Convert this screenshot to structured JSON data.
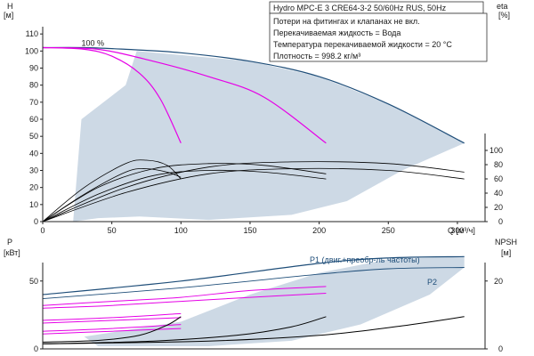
{
  "info": {
    "pump": "Hydro MPC-E 3 CRE64-3-2 50/60Hz RUS, 50Hz",
    "lines": [
      "Потери на фитингах и клапанах не вкл.",
      "Перекачиваемая жидкость = Вода",
      "Температура перекачиваемой жидкости = 20 °C",
      "Плотность = 998.2 кг/м³"
    ]
  },
  "chart_data": [
    {
      "type": "line",
      "panel": "top",
      "y_title": [
        "H",
        "[м]"
      ],
      "y2_title": [
        "eta",
        "[%]"
      ],
      "x_title": "Q [м³/ч]",
      "xlim": [
        0,
        320
      ],
      "ylim": [
        0,
        120
      ],
      "y2lim": [
        0,
        120
      ],
      "x_ticks": [
        0,
        50,
        100,
        150,
        200,
        250,
        300
      ],
      "y_ticks": [
        0,
        10,
        20,
        30,
        40,
        50,
        60,
        70,
        80,
        90,
        100,
        110
      ],
      "y2_ticks": [
        0,
        20,
        40,
        60,
        80,
        100
      ],
      "grid": false,
      "annotations": [
        {
          "text": "100 %",
          "x": 28,
          "y": 103
        }
      ],
      "colors": {
        "envelope": "#1f4e79",
        "reduced": "#e600e6",
        "eff": "#000000",
        "area": "#cdd9e5"
      },
      "series": [
        {
          "role": "envelope",
          "points": [
            [
              0,
              102
            ],
            [
              30,
              102
            ],
            [
              60,
              101
            ],
            [
              100,
              99
            ],
            [
              150,
              94
            ],
            [
              200,
              85
            ],
            [
              250,
              69
            ],
            [
              305,
              46
            ]
          ]
        },
        {
          "role": "reduced",
          "points": [
            [
              0,
              102
            ],
            [
              30,
              101
            ],
            [
              50,
              97
            ],
            [
              70,
              87
            ],
            [
              85,
              72
            ],
            [
              100,
              46
            ]
          ]
        },
        {
          "role": "reduced",
          "points": [
            [
              0,
              102
            ],
            [
              40,
              101
            ],
            [
              80,
              94
            ],
            [
              120,
              85
            ],
            [
              160,
              73
            ],
            [
              205,
              46
            ]
          ]
        },
        {
          "role": "eff",
          "points": [
            [
              0,
              0
            ],
            [
              30,
              20
            ],
            [
              60,
              34
            ],
            [
              75,
              36
            ],
            [
              90,
              33
            ],
            [
              100,
              25
            ]
          ]
        },
        {
          "role": "eff",
          "points": [
            [
              0,
              0
            ],
            [
              30,
              16
            ],
            [
              60,
              29
            ],
            [
              75,
              31
            ],
            [
              90,
              29
            ],
            [
              100,
              26
            ]
          ]
        },
        {
          "role": "eff",
          "points": [
            [
              0,
              0
            ],
            [
              40,
              20
            ],
            [
              80,
              31
            ],
            [
              120,
              34
            ],
            [
              160,
              33
            ],
            [
              205,
              28
            ]
          ]
        },
        {
          "role": "eff",
          "points": [
            [
              0,
              0
            ],
            [
              40,
              16
            ],
            [
              80,
              27
            ],
            [
              120,
              30
            ],
            [
              160,
              29
            ],
            [
              205,
              25
            ]
          ]
        },
        {
          "role": "eff",
          "points": [
            [
              0,
              0
            ],
            [
              60,
              20
            ],
            [
              120,
              32
            ],
            [
              180,
              35
            ],
            [
              250,
              34
            ],
            [
              305,
              29
            ]
          ]
        },
        {
          "role": "eff",
          "points": [
            [
              0,
              0
            ],
            [
              60,
              17
            ],
            [
              120,
              28
            ],
            [
              180,
              31
            ],
            [
              250,
              30
            ],
            [
              305,
              25
            ]
          ]
        }
      ]
    },
    {
      "type": "line",
      "panel": "bottom",
      "y_title": [
        "P",
        "[кВт]"
      ],
      "y2_title": [
        "NPSH",
        "[м]"
      ],
      "xlim": [
        0,
        320
      ],
      "ylim": [
        0,
        80
      ],
      "y2lim": [
        0,
        32
      ],
      "y_ticks": [
        0,
        50
      ],
      "y2_ticks": [
        0,
        20
      ],
      "grid": false,
      "colors": {
        "p1": "#1f4e79",
        "reduced": "#e600e6",
        "npsh": "#000000",
        "area": "#cdd9e5"
      },
      "series": [
        {
          "name": "P1 (двиг.+преобр-ль частоты)",
          "role": "p1",
          "points": [
            [
              0,
              40
            ],
            [
              100,
              50
            ],
            [
              200,
              63
            ],
            [
              250,
              67
            ],
            [
              305,
              68
            ]
          ]
        },
        {
          "name": "P2",
          "role": "p2",
          "points": [
            [
              0,
              37
            ],
            [
              100,
              45
            ],
            [
              200,
              55
            ],
            [
              250,
              59
            ],
            [
              305,
              60
            ]
          ]
        },
        {
          "role": "reduced",
          "points": [
            [
              0,
              32
            ],
            [
              50,
              35
            ],
            [
              100,
              38
            ],
            [
              150,
              43
            ],
            [
              205,
              46
            ]
          ]
        },
        {
          "role": "reduced",
          "points": [
            [
              0,
              30
            ],
            [
              50,
              32
            ],
            [
              100,
              35
            ],
            [
              150,
              38
            ],
            [
              205,
              41
            ]
          ]
        },
        {
          "role": "reduced",
          "points": [
            [
              0,
              21
            ],
            [
              50,
              23
            ],
            [
              100,
              26
            ]
          ]
        },
        {
          "role": "reduced",
          "points": [
            [
              0,
              19
            ],
            [
              50,
              21
            ],
            [
              100,
              23
            ]
          ]
        },
        {
          "role": "reduced",
          "points": [
            [
              0,
              13
            ],
            [
              50,
              15
            ],
            [
              100,
              18
            ]
          ]
        },
        {
          "role": "reduced",
          "points": [
            [
              0,
              11
            ],
            [
              50,
              13
            ],
            [
              100,
              15
            ]
          ]
        },
        {
          "role": "npsh",
          "points": [
            [
              0,
              2
            ],
            [
              40,
              2.5
            ],
            [
              70,
              4
            ],
            [
              90,
              7
            ],
            [
              100,
              9.5
            ]
          ]
        },
        {
          "role": "npsh",
          "points": [
            [
              0,
              1.5
            ],
            [
              80,
              2.3
            ],
            [
              140,
              4
            ],
            [
              180,
              6.5
            ],
            [
              205,
              9.5
            ]
          ]
        },
        {
          "role": "npsh",
          "points": [
            [
              0,
              1.5
            ],
            [
              120,
              2.3
            ],
            [
              200,
              4
            ],
            [
              260,
              6.8
            ],
            [
              305,
              9.5
            ]
          ]
        }
      ]
    }
  ]
}
